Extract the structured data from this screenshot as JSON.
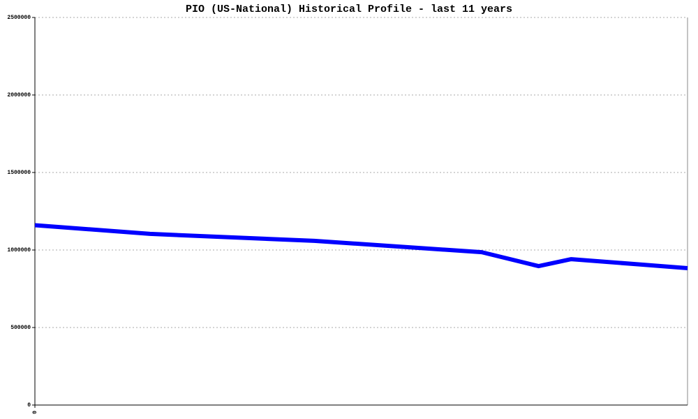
{
  "chart_data": {
    "type": "line",
    "title": "PIO (US-National) Historical Profile - last 11 years",
    "x": [
      0,
      1.94,
      4.71,
      7.53,
      8.49,
      9.04,
      11
    ],
    "series": [
      {
        "name": "PIO",
        "color": "#0000ff",
        "values": [
          1160000,
          1104000,
          1059000,
          986000,
          896000,
          941000,
          883000
        ]
      }
    ],
    "xlim": [
      0,
      11
    ],
    "xticks": [
      0
    ],
    "ylim": [
      0,
      2500000
    ],
    "yticks": [
      0,
      500000,
      1000000,
      1500000,
      2000000,
      2500000
    ],
    "grid": true
  }
}
